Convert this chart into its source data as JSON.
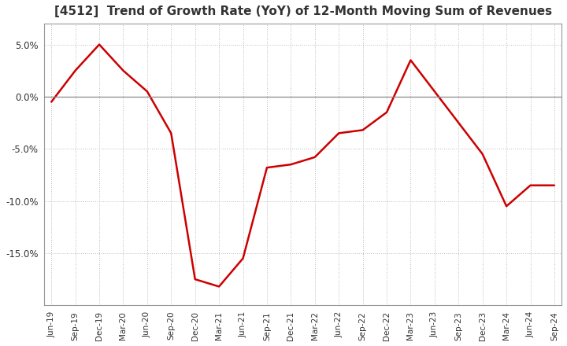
{
  "title": "[4512]  Trend of Growth Rate (YoY) of 12-Month Moving Sum of Revenues",
  "x_labels": [
    "Jun-19",
    "Sep-19",
    "Dec-19",
    "Mar-20",
    "Jun-20",
    "Sep-20",
    "Dec-20",
    "Mar-21",
    "Jun-21",
    "Sep-21",
    "Dec-21",
    "Mar-22",
    "Jun-22",
    "Sep-22",
    "Dec-22",
    "Mar-23",
    "Jun-23",
    "Sep-23",
    "Dec-23",
    "Mar-24",
    "Jun-24",
    "Sep-24"
  ],
  "y_values": [
    -0.5,
    2.5,
    5.0,
    2.5,
    0.5,
    -3.5,
    -17.5,
    -18.2,
    -15.5,
    -6.8,
    -6.5,
    -5.8,
    -3.5,
    -3.2,
    -1.5,
    3.5,
    0.5,
    -2.5,
    -5.5,
    -10.5,
    -8.5,
    -8.5
  ],
  "line_color": "#cc0000",
  "ylim": [
    -20.0,
    7.0
  ],
  "yticks": [
    -15.0,
    -10.0,
    -5.0,
    0.0,
    5.0
  ],
  "title_fontsize": 11,
  "background_color": "#ffffff",
  "plot_bg_color": "#ffffff",
  "grid_color": "#bbbbbb",
  "zero_line_color": "#888888"
}
